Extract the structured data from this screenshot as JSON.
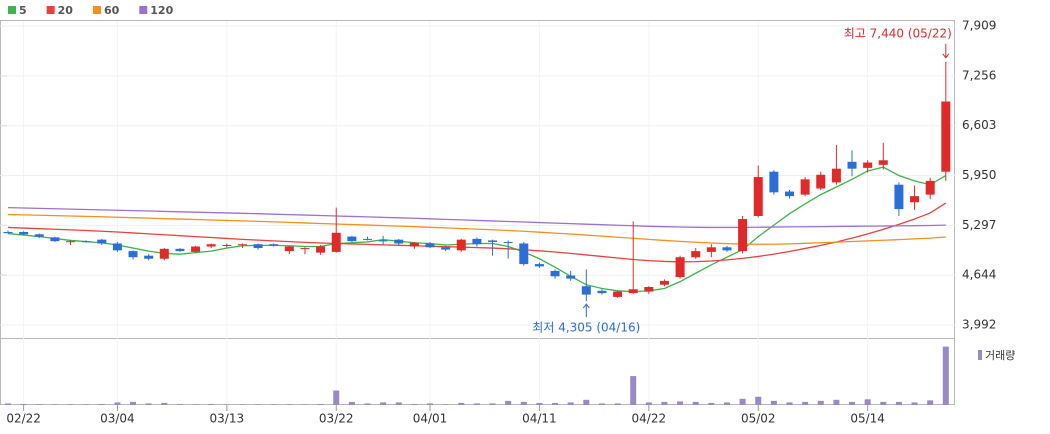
{
  "chart_data": {
    "type": "candlestick",
    "categories": [
      null,
      "02/22",
      null,
      null,
      null,
      null,
      null,
      "03/04",
      null,
      null,
      null,
      null,
      null,
      null,
      "03/13",
      null,
      null,
      null,
      null,
      null,
      null,
      "03/22",
      null,
      null,
      null,
      null,
      null,
      "04/01",
      null,
      null,
      null,
      null,
      null,
      null,
      "04/11",
      null,
      null,
      null,
      null,
      null,
      null,
      "04/22",
      null,
      null,
      null,
      null,
      null,
      null,
      "05/02",
      null,
      null,
      null,
      null,
      null,
      null,
      "05/14",
      null,
      null,
      null,
      null,
      null
    ],
    "open": [
      5210,
      5210,
      5180,
      5140,
      5080,
      5090,
      5110,
      5060,
      4960,
      4900,
      4860,
      4990,
      4950,
      5020,
      5030,
      5040,
      5050,
      5050,
      4960,
      4990,
      4940,
      4950,
      5150,
      5120,
      5100,
      5110,
      5020,
      5060,
      5010,
      4970,
      5120,
      5100,
      5080,
      5060,
      4790,
      4700,
      4640,
      4500,
      4440,
      4360,
      4410,
      4430,
      4520,
      4620,
      4880,
      4950,
      5010,
      4960,
      5420,
      6000,
      5740,
      5700,
      5780,
      5860,
      6130,
      6050,
      6090,
      5830,
      5600,
      5700,
      6000
    ],
    "high": [
      5230,
      5220,
      5190,
      5150,
      5110,
      5100,
      5120,
      5080,
      4970,
      4920,
      5000,
      5000,
      5030,
      5060,
      5060,
      5060,
      5060,
      5060,
      5030,
      5010,
      5040,
      5530,
      5160,
      5150,
      5160,
      5120,
      5080,
      5080,
      5030,
      5120,
      5140,
      5110,
      5100,
      5080,
      4810,
      4720,
      4700,
      4720,
      4460,
      4440,
      5350,
      4500,
      4590,
      4900,
      5000,
      5050,
      5030,
      5420,
      6080,
      6020,
      5760,
      5930,
      6000,
      6350,
      6280,
      6150,
      6380,
      5860,
      5820,
      5920,
      7440
    ],
    "low": [
      5190,
      5170,
      5130,
      5080,
      5040,
      5070,
      5040,
      4950,
      4850,
      4840,
      4840,
      4950,
      4940,
      5000,
      5010,
      5000,
      4980,
      5020,
      4920,
      4920,
      4910,
      4940,
      5080,
      5100,
      5040,
      5040,
      4990,
      5000,
      4960,
      4950,
      5020,
      4900,
      4860,
      4770,
      4740,
      4600,
      4570,
      4305,
      4390,
      4350,
      4400,
      4400,
      4500,
      4600,
      4860,
      4880,
      4950,
      4930,
      5400,
      5700,
      5650,
      5680,
      5760,
      5830,
      5940,
      5990,
      6030,
      5420,
      5500,
      5640,
      5880
    ],
    "close": [
      5195,
      5180,
      5150,
      5090,
      5090,
      5080,
      5060,
      4970,
      4880,
      4860,
      4990,
      4960,
      5020,
      5050,
      5040,
      5050,
      5000,
      5030,
      5020,
      5000,
      5020,
      5200,
      5090,
      5110,
      5090,
      5060,
      5070,
      5010,
      4980,
      5110,
      5050,
      5080,
      5070,
      4790,
      4760,
      4630,
      4600,
      4390,
      4410,
      4430,
      4460,
      4490,
      4570,
      4880,
      4960,
      5010,
      4970,
      5380,
      5930,
      5730,
      5680,
      5900,
      5960,
      6040,
      6040,
      6120,
      6150,
      5510,
      5680,
      5880,
      6920
    ],
    "up_color": "#e02a2a",
    "down_color": "#2b6fd6",
    "series": [
      {
        "name": "5",
        "color": "#3cb44b",
        "values": [
          5190,
          5170,
          5150,
          5125,
          5100,
          5085,
          5070,
          5040,
          5000,
          4960,
          4930,
          4920,
          4940,
          4960,
          5000,
          5030,
          5035,
          5035,
          5030,
          5020,
          5020,
          5060,
          5070,
          5080,
          5110,
          5090,
          5070,
          5060,
          5040,
          5050,
          5060,
          5060,
          5020,
          4950,
          4860,
          4750,
          4630,
          4520,
          4470,
          4440,
          4430,
          4440,
          4470,
          4560,
          4670,
          4780,
          4880,
          4980,
          5150,
          5300,
          5450,
          5580,
          5700,
          5800,
          5900,
          6010,
          6060,
          5950,
          5880,
          5830,
          5950
        ]
      },
      {
        "name": "20",
        "color": "#e8423f",
        "values": [
          5270,
          5262,
          5254,
          5246,
          5238,
          5230,
          5220,
          5210,
          5198,
          5186,
          5174,
          5162,
          5150,
          5138,
          5126,
          5114,
          5104,
          5094,
          5084,
          5074,
          5066,
          5060,
          5054,
          5048,
          5042,
          5036,
          5030,
          5024,
          5018,
          5012,
          5006,
          5000,
          4990,
          4978,
          4964,
          4948,
          4930,
          4910,
          4890,
          4870,
          4850,
          4835,
          4825,
          4820,
          4822,
          4830,
          4845,
          4865,
          4890,
          4920,
          4955,
          4995,
          5035,
          5080,
          5130,
          5185,
          5245,
          5310,
          5380,
          5460,
          5590
        ]
      },
      {
        "name": "60",
        "color": "#f39020",
        "values": [
          5440,
          5435,
          5430,
          5425,
          5420,
          5415,
          5410,
          5404,
          5398,
          5392,
          5386,
          5380,
          5374,
          5368,
          5362,
          5356,
          5350,
          5343,
          5336,
          5329,
          5322,
          5315,
          5308,
          5301,
          5294,
          5287,
          5280,
          5272,
          5264,
          5256,
          5248,
          5240,
          5230,
          5220,
          5208,
          5196,
          5184,
          5170,
          5156,
          5142,
          5128,
          5114,
          5100,
          5088,
          5076,
          5066,
          5058,
          5052,
          5050,
          5050,
          5055,
          5062,
          5070,
          5078,
          5086,
          5094,
          5102,
          5110,
          5120,
          5130,
          5145
        ]
      },
      {
        "name": "120",
        "color": "#a070d0",
        "values": [
          5530,
          5525,
          5520,
          5515,
          5510,
          5505,
          5500,
          5495,
          5490,
          5485,
          5480,
          5475,
          5470,
          5465,
          5460,
          5455,
          5450,
          5444,
          5438,
          5432,
          5426,
          5420,
          5414,
          5408,
          5402,
          5396,
          5390,
          5383,
          5376,
          5369,
          5362,
          5355,
          5348,
          5341,
          5334,
          5327,
          5320,
          5313,
          5306,
          5299,
          5292,
          5285,
          5280,
          5276,
          5272,
          5270,
          5270,
          5271,
          5273,
          5275,
          5277,
          5279,
          5281,
          5283,
          5285,
          5287,
          5289,
          5291,
          5293,
          5295,
          5300
        ]
      }
    ],
    "volume": {
      "name": "거래량",
      "color": "#9b88c8",
      "values": [
        30000,
        20000,
        15000,
        10000,
        10000,
        10000,
        20000,
        50000,
        60000,
        30000,
        40000,
        15000,
        10000,
        20000,
        10000,
        10000,
        10000,
        10000,
        10000,
        10000,
        20000,
        280000,
        60000,
        30000,
        50000,
        50000,
        20000,
        30000,
        10000,
        40000,
        30000,
        30000,
        80000,
        60000,
        40000,
        40000,
        50000,
        100000,
        30000,
        30000,
        560000,
        50000,
        60000,
        70000,
        60000,
        40000,
        50000,
        120000,
        160000,
        80000,
        50000,
        60000,
        80000,
        100000,
        60000,
        110000,
        60000,
        60000,
        50000,
        90000,
        1130000
      ],
      "vlim": [
        0,
        1200000
      ]
    },
    "ylim": [
      3992,
      7909
    ],
    "yticks": [
      {
        "value": 3992,
        "label": "3,992"
      },
      {
        "value": 4644,
        "label": "4,644"
      },
      {
        "value": 5297,
        "label": "5,297"
      },
      {
        "value": 5950,
        "label": "5,950"
      },
      {
        "value": 6603,
        "label": "6,603"
      },
      {
        "value": 7256,
        "label": "7,256"
      },
      {
        "value": 7909,
        "label": "7,909"
      }
    ],
    "grid": true,
    "high_label": {
      "text": "최고 7,440 (05/22)",
      "color": "#e02a2a"
    },
    "low_label": {
      "text": "최저 4,305 (04/16)",
      "color": "#2b6fd6"
    }
  }
}
